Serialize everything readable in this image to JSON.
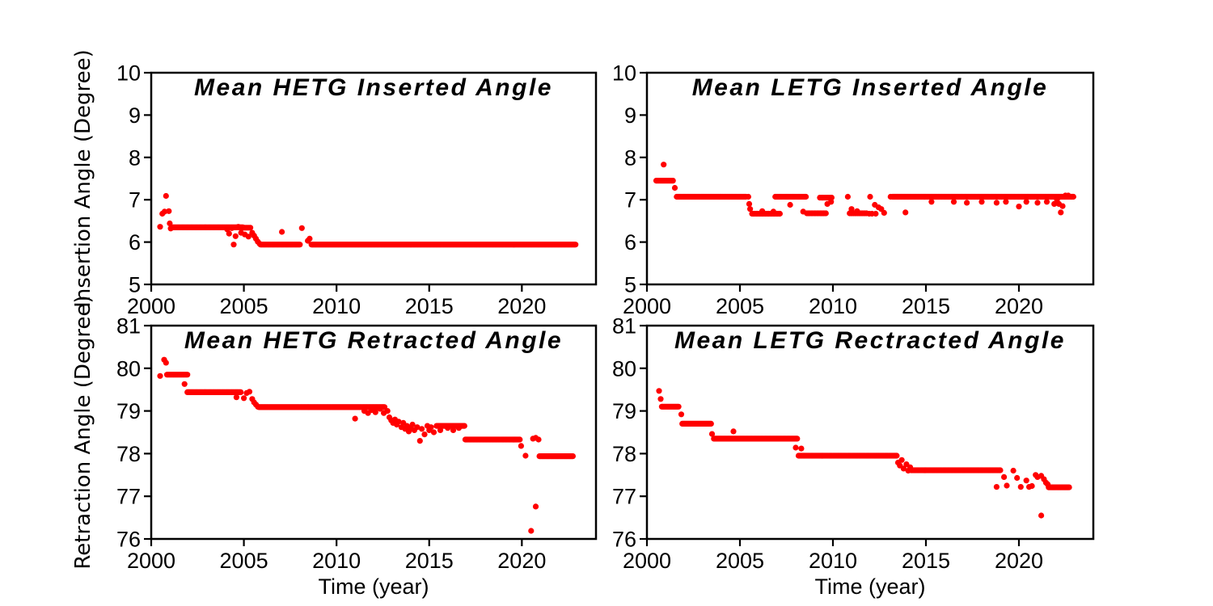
{
  "figure": {
    "background": "#ffffff",
    "marker_color": "#ff0000",
    "axis_color": "#000000",
    "text_color": "#000000",
    "marker_radius": 3.6
  },
  "chart_data": [
    {
      "name": "hetg-inserted",
      "type": "scatter",
      "title": "Mean HETG Inserted Angle",
      "ylabel": "Insertion Angle (Degree)",
      "xlabel": "",
      "xlim": [
        2000,
        2024
      ],
      "ylim": [
        5,
        10
      ],
      "xticks": [
        2000,
        2005,
        2010,
        2015,
        2020
      ],
      "yticks": [
        5,
        6,
        7,
        8,
        9,
        10
      ],
      "grid": false,
      "legend": "none",
      "runs": [
        [
          2001.15,
          2004.95,
          6.35,
          0.04
        ],
        [
          2004.95,
          2005.35,
          6.34,
          0.08
        ],
        [
          2005.9,
          2008.05,
          5.94,
          0.04
        ],
        [
          2008.65,
          2022.9,
          5.94,
          0.035
        ]
      ],
      "points": [
        [
          2000.48,
          6.36
        ],
        [
          2000.6,
          6.67
        ],
        [
          2000.72,
          6.72
        ],
        [
          2000.8,
          7.09
        ],
        [
          2000.95,
          6.73
        ],
        [
          2001.0,
          6.44
        ],
        [
          2001.05,
          6.32
        ],
        [
          2004.1,
          6.3
        ],
        [
          2004.2,
          6.2
        ],
        [
          2004.35,
          6.33
        ],
        [
          2004.45,
          5.94
        ],
        [
          2004.55,
          6.14
        ],
        [
          2004.7,
          6.36
        ],
        [
          2004.85,
          6.22
        ],
        [
          2005.05,
          6.18
        ],
        [
          2005.25,
          6.13
        ],
        [
          2005.45,
          6.22
        ],
        [
          2005.55,
          6.15
        ],
        [
          2005.65,
          6.08
        ],
        [
          2005.75,
          6.01
        ],
        [
          2005.85,
          5.96
        ],
        [
          2007.05,
          6.24
        ],
        [
          2008.13,
          6.33
        ],
        [
          2008.45,
          6.03
        ],
        [
          2008.55,
          6.08
        ]
      ]
    },
    {
      "name": "letg-inserted",
      "type": "scatter",
      "title": "Mean LETG Inserted Angle",
      "ylabel": "",
      "xlabel": "",
      "xlim": [
        2000,
        2024
      ],
      "ylim": [
        5,
        10
      ],
      "xticks": [
        2000,
        2005,
        2010,
        2015,
        2020
      ],
      "yticks": [
        5,
        6,
        7,
        8,
        9,
        10
      ],
      "grid": false,
      "legend": "none",
      "runs": [
        [
          2000.5,
          2001.4,
          7.45,
          0.05
        ],
        [
          2001.6,
          2005.35,
          7.07,
          0.04
        ],
        [
          2005.65,
          2007.15,
          6.67,
          0.06
        ],
        [
          2006.9,
          2008.55,
          7.07,
          0.05
        ],
        [
          2008.6,
          2009.65,
          6.68,
          0.06
        ],
        [
          2009.3,
          2010.0,
          7.05,
          0.09
        ],
        [
          2010.9,
          2011.85,
          6.68,
          0.07
        ],
        [
          2013.2,
          2022.95,
          7.07,
          0.035
        ]
      ],
      "points": [
        [
          2000.9,
          7.83
        ],
        [
          2001.5,
          7.28
        ],
        [
          2005.45,
          7.07
        ],
        [
          2005.5,
          6.9
        ],
        [
          2005.55,
          6.78
        ],
        [
          2006.2,
          6.73
        ],
        [
          2006.8,
          6.72
        ],
        [
          2007.7,
          6.88
        ],
        [
          2008.4,
          6.72
        ],
        [
          2009.7,
          6.9
        ],
        [
          2009.9,
          6.95
        ],
        [
          2010.8,
          7.07
        ],
        [
          2011.0,
          6.78
        ],
        [
          2011.3,
          6.73
        ],
        [
          2011.95,
          6.67
        ],
        [
          2012.1,
          6.67
        ],
        [
          2012.3,
          6.67
        ],
        [
          2012.0,
          7.07
        ],
        [
          2012.25,
          6.88
        ],
        [
          2012.45,
          6.82
        ],
        [
          2012.6,
          6.78
        ],
        [
          2012.75,
          6.69
        ],
        [
          2013.1,
          7.07
        ],
        [
          2013.9,
          6.7
        ],
        [
          2015.3,
          6.95
        ],
        [
          2016.5,
          6.95
        ],
        [
          2017.2,
          6.93
        ],
        [
          2018.0,
          6.95
        ],
        [
          2018.8,
          6.93
        ],
        [
          2019.3,
          6.95
        ],
        [
          2020.0,
          6.84
        ],
        [
          2020.4,
          6.95
        ],
        [
          2021.0,
          6.93
        ],
        [
          2021.5,
          6.95
        ],
        [
          2021.9,
          6.9
        ],
        [
          2022.05,
          7.0
        ],
        [
          2022.15,
          6.9
        ],
        [
          2022.25,
          6.7
        ],
        [
          2022.35,
          6.85
        ],
        [
          2022.5,
          7.1
        ],
        [
          2022.65,
          7.1
        ]
      ]
    },
    {
      "name": "hetg-retracted",
      "type": "scatter",
      "title": "Mean HETG Retracted Angle",
      "ylabel": "Retraction Angle (Degree)",
      "xlabel": "Time (year)",
      "xlim": [
        2000,
        2024
      ],
      "ylim": [
        76,
        81
      ],
      "xticks": [
        2000,
        2005,
        2010,
        2015,
        2020
      ],
      "yticks": [
        76,
        77,
        78,
        79,
        80,
        81
      ],
      "grid": false,
      "legend": "none",
      "runs": [
        [
          2000.85,
          2001.95,
          79.85,
          0.05
        ],
        [
          2001.95,
          2004.85,
          79.44,
          0.04
        ],
        [
          2005.8,
          2012.6,
          79.09,
          0.035
        ],
        [
          2015.4,
          2016.9,
          78.65,
          0.05
        ],
        [
          2016.95,
          2019.9,
          78.33,
          0.035
        ],
        [
          2020.95,
          2022.75,
          77.94,
          0.04
        ]
      ],
      "points": [
        [
          2000.48,
          79.82
        ],
        [
          2000.7,
          80.2
        ],
        [
          2000.8,
          80.13
        ],
        [
          2001.8,
          79.63
        ],
        [
          2004.6,
          79.32
        ],
        [
          2005.0,
          79.3
        ],
        [
          2005.15,
          79.42
        ],
        [
          2005.3,
          79.45
        ],
        [
          2005.45,
          79.28
        ],
        [
          2005.55,
          79.2
        ],
        [
          2005.65,
          79.15
        ],
        [
          2005.75,
          79.1
        ],
        [
          2011.0,
          78.82
        ],
        [
          2011.5,
          79.0
        ],
        [
          2011.7,
          78.95
        ],
        [
          2011.9,
          79.02
        ],
        [
          2012.1,
          78.97
        ],
        [
          2012.35,
          79.05
        ],
        [
          2012.55,
          78.95
        ],
        [
          2012.75,
          79.0
        ],
        [
          2012.85,
          78.85
        ],
        [
          2012.95,
          78.78
        ],
        [
          2013.05,
          78.72
        ],
        [
          2013.15,
          78.8
        ],
        [
          2013.25,
          78.68
        ],
        [
          2013.35,
          78.75
        ],
        [
          2013.5,
          78.62
        ],
        [
          2013.6,
          78.72
        ],
        [
          2013.7,
          78.58
        ],
        [
          2013.8,
          78.65
        ],
        [
          2013.9,
          78.52
        ],
        [
          2014.0,
          78.6
        ],
        [
          2014.1,
          78.68
        ],
        [
          2014.2,
          78.55
        ],
        [
          2014.35,
          78.62
        ],
        [
          2014.5,
          78.3
        ],
        [
          2014.6,
          78.58
        ],
        [
          2014.75,
          78.45
        ],
        [
          2014.9,
          78.65
        ],
        [
          2015.0,
          78.55
        ],
        [
          2015.1,
          78.62
        ],
        [
          2015.25,
          78.5
        ],
        [
          2015.6,
          78.55
        ],
        [
          2016.0,
          78.6
        ],
        [
          2016.3,
          78.55
        ],
        [
          2016.6,
          78.6
        ],
        [
          2019.96,
          78.18
        ],
        [
          2020.2,
          77.95
        ],
        [
          2020.5,
          76.19
        ],
        [
          2020.75,
          76.76
        ],
        [
          2020.6,
          78.35
        ],
        [
          2020.75,
          78.37
        ],
        [
          2020.9,
          78.33
        ]
      ]
    },
    {
      "name": "letg-rectracted",
      "type": "scatter",
      "title": "Mean LETG Rectracted Angle",
      "ylabel": "",
      "xlabel": "Time (year)",
      "xlim": [
        2000,
        2024
      ],
      "ylim": [
        76,
        81
      ],
      "xticks": [
        2000,
        2005,
        2010,
        2015,
        2020
      ],
      "yticks": [
        76,
        77,
        78,
        79,
        80,
        81
      ],
      "grid": false,
      "legend": "none",
      "runs": [
        [
          2000.8,
          2001.7,
          79.1,
          0.05
        ],
        [
          2001.9,
          2003.45,
          78.7,
          0.05
        ],
        [
          2003.6,
          2008.1,
          78.35,
          0.04
        ],
        [
          2008.15,
          2013.45,
          77.95,
          0.04
        ],
        [
          2014.2,
          2019.0,
          77.61,
          0.04
        ],
        [
          2021.6,
          2022.7,
          77.21,
          0.05
        ]
      ],
      "points": [
        [
          2000.65,
          79.47
        ],
        [
          2000.74,
          79.28
        ],
        [
          2001.85,
          78.92
        ],
        [
          2003.5,
          78.46
        ],
        [
          2004.65,
          78.52
        ],
        [
          2008.0,
          78.14
        ],
        [
          2008.3,
          78.12
        ],
        [
          2013.5,
          77.79
        ],
        [
          2013.6,
          77.72
        ],
        [
          2013.7,
          77.85
        ],
        [
          2013.8,
          77.65
        ],
        [
          2013.95,
          77.75
        ],
        [
          2014.05,
          77.6
        ],
        [
          2014.15,
          77.68
        ],
        [
          2018.8,
          77.22
        ],
        [
          2019.2,
          77.45
        ],
        [
          2019.35,
          77.25
        ],
        [
          2019.7,
          77.6
        ],
        [
          2019.9,
          77.43
        ],
        [
          2020.1,
          77.22
        ],
        [
          2020.4,
          77.37
        ],
        [
          2020.55,
          77.22
        ],
        [
          2020.7,
          77.24
        ],
        [
          2020.9,
          77.5
        ],
        [
          2021.0,
          77.45
        ],
        [
          2021.2,
          77.48
        ],
        [
          2021.35,
          77.4
        ],
        [
          2021.45,
          77.32
        ],
        [
          2021.55,
          77.28
        ],
        [
          2021.2,
          76.55
        ]
      ]
    }
  ]
}
